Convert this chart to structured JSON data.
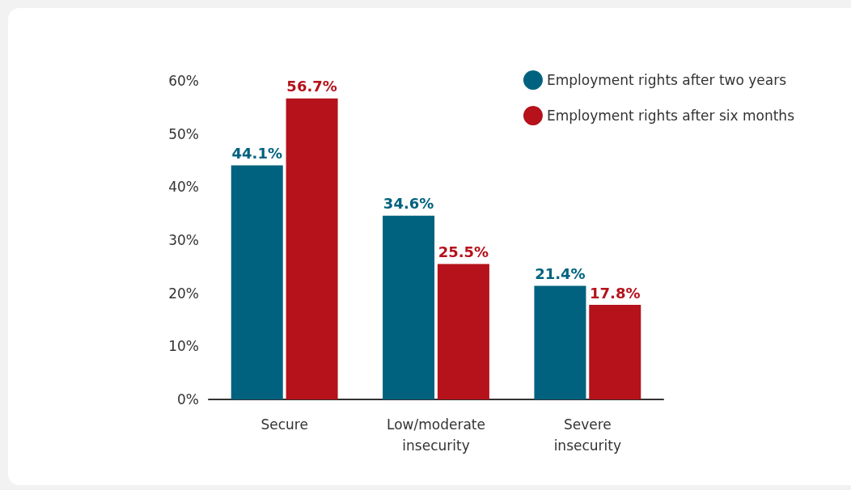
{
  "chart_data": {
    "type": "bar",
    "categories": [
      "Secure",
      "Low/moderate\ninsecurity",
      "Severe\ninsecurity"
    ],
    "series": [
      {
        "name": "Employment rights after two years",
        "color": "#00627f",
        "values": [
          44.1,
          34.6,
          21.4
        ],
        "value_labels": [
          "44.1%",
          "34.6%",
          "21.4%"
        ]
      },
      {
        "name": "Employment rights after six months",
        "color": "#b5121b",
        "values": [
          56.7,
          25.5,
          17.8
        ],
        "value_labels": [
          "56.7%",
          "25.5%",
          "17.8%"
        ]
      }
    ],
    "ylim": [
      0,
      60
    ],
    "yticks": [
      {
        "value": 0,
        "label": "0%"
      },
      {
        "value": 10,
        "label": "10%"
      },
      {
        "value": 20,
        "label": "20%"
      },
      {
        "value": 30,
        "label": "30%"
      },
      {
        "value": 40,
        "label": "40%"
      },
      {
        "value": 50,
        "label": "50%"
      },
      {
        "value": 60,
        "label": "60%"
      }
    ],
    "grid": false,
    "legend": "top right"
  }
}
